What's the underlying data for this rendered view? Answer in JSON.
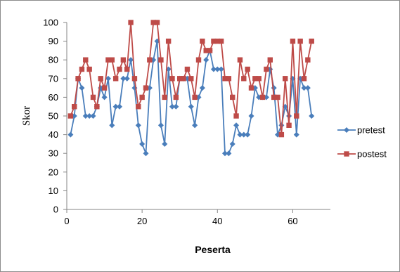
{
  "chart_data": {
    "type": "line",
    "title": "",
    "xlabel": "Peserta",
    "ylabel": "Skor",
    "xlim": [
      0,
      70
    ],
    "ylim": [
      0,
      100
    ],
    "xticks": [
      0,
      20,
      40,
      60
    ],
    "yticks": [
      0,
      10,
      20,
      30,
      40,
      50,
      60,
      70,
      80,
      90,
      100
    ],
    "grid": false,
    "legend_position": "right",
    "series": [
      {
        "name": "pretest",
        "color": "#4a7ebb",
        "marker": "diamond",
        "x": [
          1,
          2,
          3,
          4,
          5,
          6,
          7,
          8,
          9,
          10,
          11,
          12,
          13,
          14,
          15,
          16,
          17,
          18,
          19,
          20,
          21,
          22,
          23,
          24,
          25,
          26,
          27,
          28,
          29,
          30,
          31,
          32,
          33,
          34,
          35,
          36,
          37,
          38,
          39,
          40,
          41,
          42,
          43,
          44,
          45,
          46,
          47,
          48,
          49,
          50,
          51,
          52,
          53,
          54,
          55,
          56,
          57,
          58,
          59,
          60,
          61,
          62,
          63,
          64,
          65
        ],
        "y": [
          40,
          50,
          70,
          65,
          50,
          50,
          50,
          55,
          65,
          60,
          70,
          45,
          55,
          55,
          70,
          70,
          80,
          65,
          45,
          35,
          30,
          65,
          80,
          90,
          45,
          35,
          75,
          55,
          55,
          70,
          70,
          70,
          55,
          45,
          60,
          65,
          80,
          85,
          75,
          75,
          75,
          30,
          30,
          35,
          45,
          40,
          40,
          40,
          50,
          65,
          60,
          60,
          60,
          75,
          65,
          40,
          45,
          55,
          50,
          70,
          40,
          70,
          65,
          65,
          50
        ]
      },
      {
        "name": "postest",
        "color": "#be4b48",
        "marker": "square",
        "x": [
          1,
          2,
          3,
          4,
          5,
          6,
          7,
          8,
          9,
          10,
          11,
          12,
          13,
          14,
          15,
          16,
          17,
          18,
          19,
          20,
          21,
          22,
          23,
          24,
          25,
          26,
          27,
          28,
          29,
          30,
          31,
          32,
          33,
          34,
          35,
          36,
          37,
          38,
          39,
          40,
          41,
          42,
          43,
          44,
          45,
          46,
          47,
          48,
          49,
          50,
          51,
          52,
          53,
          54,
          55,
          56,
          57,
          58,
          59,
          60,
          61,
          62,
          63,
          64,
          65
        ],
        "y": [
          50,
          55,
          70,
          75,
          80,
          75,
          60,
          55,
          70,
          65,
          80,
          80,
          70,
          75,
          80,
          75,
          100,
          70,
          55,
          60,
          65,
          80,
          100,
          100,
          80,
          60,
          90,
          70,
          60,
          70,
          70,
          75,
          70,
          60,
          80,
          90,
          85,
          85,
          90,
          90,
          90,
          70,
          70,
          60,
          50,
          80,
          70,
          75,
          65,
          70,
          70,
          60,
          75,
          80,
          60,
          60,
          40,
          70,
          45,
          90,
          50,
          90,
          70,
          80,
          90
        ]
      }
    ]
  }
}
